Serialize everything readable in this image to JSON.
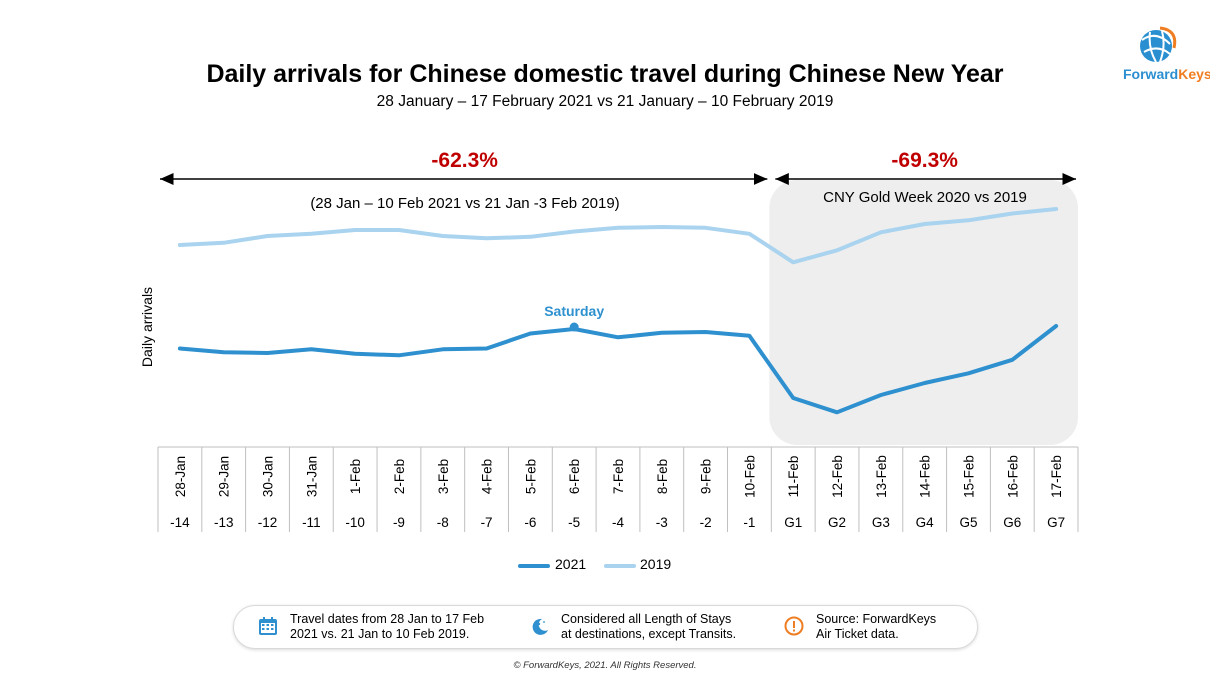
{
  "title": "Daily arrivals for Chinese domestic travel during Chinese New Year",
  "subtitle": "28 January – 17 February 2021 vs 21 January – 10 February 2019",
  "logo": {
    "text_part1": "Forward",
    "text_part2": "Keys",
    "colors": [
      "#2a8fd0",
      "#ef7d22"
    ]
  },
  "annotations": {
    "pre_pct": "-62.3%",
    "pre_range": "(28 Jan – 10 Feb 2021 vs 21 Jan -3 Feb 2019)",
    "gold_pct": "-69.3%",
    "gold_label": "CNY Gold Week 2020 vs 2019",
    "saturday": "Saturday",
    "pct_color": "#c00000"
  },
  "chart_data": {
    "type": "line",
    "ylabel": "Daily arrivals",
    "xlabel": "",
    "categories": [
      "28-Jan",
      "29-Jan",
      "30-Jan",
      "31-Jan",
      "1-Feb",
      "2-Feb",
      "3-Feb",
      "4-Feb",
      "5-Feb",
      "6-Feb",
      "7-Feb",
      "8-Feb",
      "9-Feb",
      "10-Feb",
      "11-Feb",
      "12-Feb",
      "13-Feb",
      "14-Feb",
      "15-Feb",
      "16-Feb",
      "17-Feb"
    ],
    "day_offsets": [
      "-14",
      "-13",
      "-12",
      "-11",
      "-10",
      "-9",
      "-8",
      "-7",
      "-6",
      "-5",
      "-4",
      "-3",
      "-2",
      "-1",
      "G1",
      "G2",
      "G3",
      "G4",
      "G5",
      "G6",
      "G7"
    ],
    "series": [
      {
        "name": "2021",
        "color": "#2e90cf",
        "values": [
          31,
          28.5,
          28,
          30.5,
          27.5,
          26.5,
          30.5,
          31,
          41,
          44,
          38.5,
          41.5,
          42,
          39.5,
          -2,
          -11.5,
          0,
          8,
          14.5,
          23.5,
          46
        ]
      },
      {
        "name": "2019",
        "color": "#a9d3ee",
        "values": [
          100,
          101.5,
          106,
          107.5,
          110,
          110,
          106,
          104.5,
          105.5,
          109,
          111.5,
          112,
          111.5,
          107.5,
          88.5,
          96.5,
          108.5,
          114,
          116.5,
          121,
          124
        ]
      }
    ],
    "ylim": [
      -30,
      150
    ],
    "grid": false,
    "legend": "bottom"
  },
  "footer": {
    "note1": "Travel dates from 28 Jan to 17 Feb\n2021 vs. 21 Jan to 10 Feb 2019.",
    "note2": "Considered all Length of Stays\nat destinations, except Transits.",
    "note3": "Source: ForwardKeys\nAir Ticket data.",
    "icon1": "calendar-icon",
    "icon2": "moon-stars-icon",
    "icon3": "warning-icon"
  },
  "copyright": "© ForwardKeys, 2021. All Rights Reserved."
}
